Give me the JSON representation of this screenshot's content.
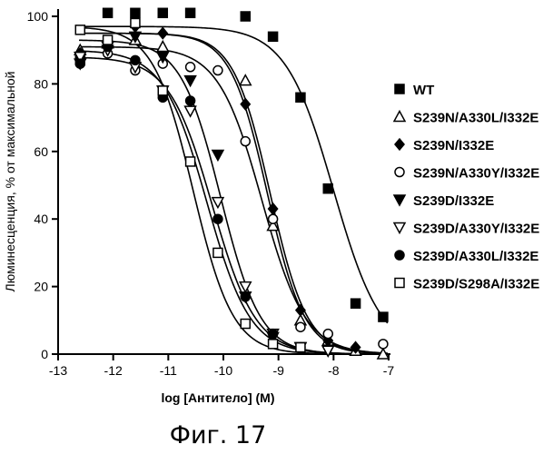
{
  "caption": "Фиг. 17",
  "chart_data": {
    "type": "scatter",
    "xlabel": "log [Антитело] (M)",
    "ylabel": "Люминесценция, % от максимальной",
    "xlim": [
      -13,
      -7
    ],
    "ylim": [
      0,
      100
    ],
    "xticks": [
      "-13",
      "-12",
      "-11",
      "-10",
      "-9",
      "-8",
      "-7"
    ],
    "yticks": [
      "0",
      "20",
      "40",
      "60",
      "80",
      "100"
    ],
    "legend_position": "right",
    "series": [
      {
        "name": "WT",
        "marker": "square-filled",
        "x": [
          -12.6,
          -12.1,
          -11.6,
          -11.1,
          -10.6,
          -9.6,
          -9.1,
          -8.6,
          -8.1,
          -7.6,
          -7.1
        ],
        "y": [
          88,
          101,
          101,
          101,
          101,
          100,
          94,
          76,
          49,
          15,
          11
        ],
        "fit": {
          "top": 97,
          "bottom": 0,
          "logec50": -8.0,
          "hill": 1.0
        }
      },
      {
        "name": "S239N/A330L/I332E",
        "marker": "triangle-up-open",
        "x": [
          -12.6,
          -12.1,
          -11.6,
          -11.1,
          -9.6,
          -9.1,
          -8.6,
          -8.1,
          -7.6,
          -7.1
        ],
        "y": [
          90,
          92,
          93,
          91,
          81,
          38,
          10,
          4,
          1,
          0
        ],
        "fit": {
          "top": 95,
          "bottom": 0,
          "logec50": -9.2,
          "hill": 1.3
        }
      },
      {
        "name": "S239N/I332E",
        "marker": "diamond-filled",
        "x": [
          -12.6,
          -12.1,
          -11.6,
          -11.1,
          -9.6,
          -9.1,
          -8.6,
          -8.1,
          -7.6
        ],
        "y": [
          89,
          91,
          97,
          95,
          74,
          43,
          13,
          4,
          2
        ],
        "fit": {
          "top": 95,
          "bottom": 0,
          "logec50": -9.15,
          "hill": 1.3
        }
      },
      {
        "name": "S239N/A330Y/I332E",
        "marker": "circle-open",
        "x": [
          -12.6,
          -12.1,
          -11.6,
          -11.1,
          -10.6,
          -10.1,
          -9.6,
          -9.1,
          -8.6,
          -8.1,
          -7.1
        ],
        "y": [
          86,
          89,
          84,
          86,
          85,
          84,
          63,
          40,
          8,
          6,
          3
        ],
        "fit": {
          "top": 91,
          "bottom": 0,
          "logec50": -9.3,
          "hill": 1.1
        }
      },
      {
        "name": "S239D/I332E",
        "marker": "triangle-down-filled",
        "x": [
          -12.6,
          -12.1,
          -11.6,
          -11.1,
          -10.6,
          -10.1,
          -9.6,
          -9.1,
          -8.6,
          -8.1
        ],
        "y": [
          86,
          91,
          94,
          88,
          81,
          59,
          17,
          5,
          2,
          1
        ],
        "fit": {
          "top": 93,
          "bottom": 0,
          "logec50": -10.05,
          "hill": 1.2
        }
      },
      {
        "name": "S239D/A330Y/I332E",
        "marker": "triangle-down-open",
        "x": [
          -12.6,
          -12.1,
          -11.6,
          -11.1,
          -10.6,
          -10.1,
          -9.6,
          -9.1,
          -8.6,
          -8.1
        ],
        "y": [
          88,
          90,
          85,
          78,
          72,
          45,
          20,
          6,
          2,
          1
        ],
        "fit": {
          "top": 88,
          "bottom": 0,
          "logec50": -10.2,
          "hill": 1.1
        }
      },
      {
        "name": "S239D/A330L/I332E",
        "marker": "circle-filled",
        "x": [
          -12.6,
          -12.1,
          -11.6,
          -11.1,
          -10.6,
          -10.1,
          -9.6,
          -9.1,
          -8.6
        ],
        "y": [
          86,
          91,
          87,
          76,
          75,
          40,
          17,
          6,
          2
        ],
        "fit": {
          "top": 90,
          "bottom": 0,
          "logec50": -10.3,
          "hill": 1.1
        }
      },
      {
        "name": "S239D/S298A/I332E",
        "marker": "square-open",
        "x": [
          -12.6,
          -12.1,
          -11.6,
          -11.1,
          -10.6,
          -10.1,
          -9.6,
          -9.1,
          -8.6
        ],
        "y": [
          96,
          93,
          98,
          78,
          57,
          30,
          9,
          3,
          2
        ],
        "fit": {
          "top": 97,
          "bottom": 0,
          "logec50": -10.55,
          "hill": 1.2
        }
      }
    ]
  }
}
